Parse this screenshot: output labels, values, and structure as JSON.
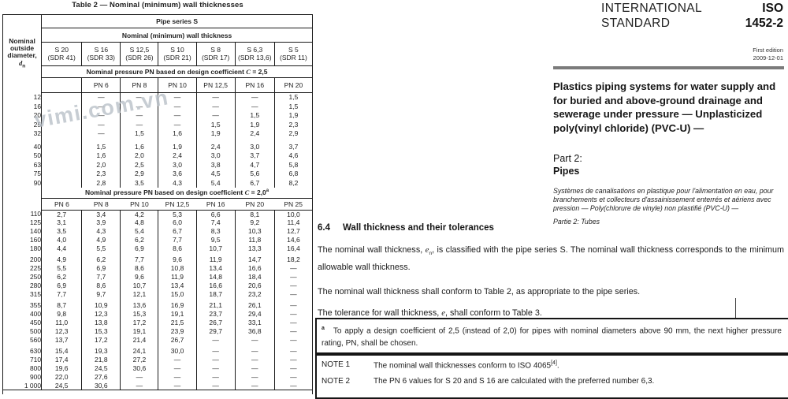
{
  "watermark": "vimi.com.vn",
  "table": {
    "title": "Table 2 — Nominal (minimum) wall thicknesses",
    "pipe_series_header": "Pipe series S",
    "wall_thickness_header": "Nominal (minimum) wall thickness",
    "stub_header_lines": [
      "Nominal",
      "outside",
      "diameter,"
    ],
    "stub_symbol": "d",
    "stub_symbol_sub": "n",
    "series_columns": [
      {
        "s": "S 20",
        "sdr": "(SDR 41)"
      },
      {
        "s": "S 16",
        "sdr": "(SDR 33)"
      },
      {
        "s": "S 12,5",
        "sdr": "(SDR 26)"
      },
      {
        "s": "S 10",
        "sdr": "(SDR 21)"
      },
      {
        "s": "S 8",
        "sdr": "(SDR 17)"
      },
      {
        "s": "S 6,3",
        "sdr": "(SDR 13,6)"
      },
      {
        "s": "S 5",
        "sdr": "(SDR 11)"
      }
    ],
    "block_c25": {
      "header_prefix": "Nominal pressure PN based on design coefficient ",
      "header_c": "C",
      "header_value": " = 2,5",
      "header_sup": "",
      "pn_labels": [
        "",
        "PN 6",
        "PN 8",
        "PN 10",
        "PN 12,5",
        "PN 16",
        "PN 20"
      ],
      "groups": [
        [
          [
            "12",
            "",
            "—",
            "—",
            "—",
            "—",
            "—",
            "1,5"
          ],
          [
            "16",
            "",
            "—",
            "—",
            "—",
            "—",
            "—",
            "1,5"
          ],
          [
            "20",
            "",
            "—",
            "—",
            "—",
            "—",
            "1,5",
            "1,9"
          ],
          [
            "25",
            "",
            "—",
            "—",
            "—",
            "1,5",
            "1,9",
            "2,3"
          ],
          [
            "32",
            "",
            "—",
            "1,5",
            "1,6",
            "1,9",
            "2,4",
            "2,9"
          ]
        ],
        [
          [
            "40",
            "",
            "1,5",
            "1,6",
            "1,9",
            "2,4",
            "3,0",
            "3,7"
          ],
          [
            "50",
            "",
            "1,6",
            "2,0",
            "2,4",
            "3,0",
            "3,7",
            "4,6"
          ],
          [
            "63",
            "",
            "2,0",
            "2,5",
            "3,0",
            "3,8",
            "4,7",
            "5,8"
          ],
          [
            "75",
            "",
            "2,3",
            "2,9",
            "3,6",
            "4,5",
            "5,6",
            "6,8"
          ],
          [
            "90",
            "",
            "2,8",
            "3,5",
            "4,3",
            "5,4",
            "6,7",
            "8,2"
          ]
        ]
      ]
    },
    "block_c20": {
      "header_prefix": "Nominal pressure PN based on design coefficient ",
      "header_c": "C",
      "header_value": " = 2,0",
      "header_sup": "a",
      "pn_labels": [
        "PN 6",
        "PN 8",
        "PN 10",
        "PN 12,5",
        "PN 16",
        "PN 20",
        "PN 25"
      ],
      "groups": [
        [
          [
            "110",
            "2,7",
            "3,4",
            "4,2",
            "5,3",
            "6,6",
            "8,1",
            "10,0"
          ],
          [
            "125",
            "3,1",
            "3,9",
            "4,8",
            "6,0",
            "7,4",
            "9,2",
            "11,4"
          ],
          [
            "140",
            "3,5",
            "4,3",
            "5,4",
            "6,7",
            "8,3",
            "10,3",
            "12,7"
          ],
          [
            "160",
            "4,0",
            "4,9",
            "6,2",
            "7,7",
            "9,5",
            "11,8",
            "14,6"
          ],
          [
            "180",
            "4,4",
            "5,5",
            "6,9",
            "8,6",
            "10,7",
            "13,3",
            "16,4"
          ]
        ],
        [
          [
            "200",
            "4,9",
            "6,2",
            "7,7",
            "9,6",
            "11,9",
            "14,7",
            "18,2"
          ],
          [
            "225",
            "5,5",
            "6,9",
            "8,6",
            "10,8",
            "13,4",
            "16,6",
            "—"
          ],
          [
            "250",
            "6,2",
            "7,7",
            "9,6",
            "11,9",
            "14,8",
            "18,4",
            "—"
          ],
          [
            "280",
            "6,9",
            "8,6",
            "10,7",
            "13,4",
            "16,6",
            "20,6",
            "—"
          ],
          [
            "315",
            "7,7",
            "9,7",
            "12,1",
            "15,0",
            "18,7",
            "23,2",
            "—"
          ]
        ],
        [
          [
            "355",
            "8,7",
            "10,9",
            "13,6",
            "16,9",
            "21,1",
            "26,1",
            "—"
          ],
          [
            "400",
            "9,8",
            "12,3",
            "15,3",
            "19,1",
            "23,7",
            "29,4",
            "—"
          ],
          [
            "450",
            "11,0",
            "13,8",
            "17,2",
            "21,5",
            "26,7",
            "33,1",
            "—"
          ],
          [
            "500",
            "12,3",
            "15,3",
            "19,1",
            "23,9",
            "29,7",
            "36,8",
            "—"
          ],
          [
            "560",
            "13,7",
            "17,2",
            "21,4",
            "26,7",
            "—",
            "—",
            "—"
          ]
        ],
        [
          [
            "630",
            "15,4",
            "19,3",
            "24,1",
            "30,0",
            "—",
            "—",
            "—"
          ],
          [
            "710",
            "17,4",
            "21,8",
            "27,2",
            "—",
            "—",
            "—",
            "—"
          ],
          [
            "800",
            "19,6",
            "24,5",
            "30,6",
            "—",
            "—",
            "—",
            "—"
          ],
          [
            "900",
            "22,0",
            "27,6",
            "—",
            "—",
            "—",
            "—",
            "—"
          ],
          [
            "1 000",
            "24,5",
            "30,6",
            "—",
            "—",
            "—",
            "—",
            "—"
          ]
        ]
      ]
    }
  },
  "cover": {
    "org_line1": "INTERNATIONAL",
    "org_line2": "STANDARD",
    "code": "ISO",
    "number": "1452-2",
    "edition_line1": "First edition",
    "edition_line2": "2009-12-01",
    "title_en": "Plastics piping systems for water supply and for buried and above-ground drainage and sewerage under pressure — Unplasticized poly(vinyl chloride) (PVC-U) —",
    "part_label": "Part 2:",
    "part_title": "Pipes",
    "title_fr": "Systèmes de canalisations en plastique pour l'alimentation en eau, pour branchements et collecteurs d'assainissement enterrés et aériens avec pression — Poly(chlorure de vinyle) non plastifié (PVC-U) —",
    "part_fr": "Partie 2: Tubes"
  },
  "section": {
    "number": "6.4",
    "heading": "Wall thickness and their tolerances",
    "p1_a": "The nominal wall thickness, ",
    "p1_sym": "e",
    "p1_sub": "n",
    "p1_b": ", is classified with the pipe series S. The nominal wall thickness corresponds to the minimum allowable wall thickness.",
    "p2": "The nominal wall thickness shall conform to Table 2, as appropriate to the pipe series.",
    "p3_a": "The tolerance for wall thickness, ",
    "p3_sym": "e",
    "p3_b": ", shall conform to Table 3."
  },
  "footnote": {
    "marker": "a",
    "text": "To apply a design coefficient of 2,5 (instead of 2,0) for pipes with nominal diameters above 90 mm, the next higher pressure rating, PN, shall be chosen."
  },
  "notes": {
    "note1_label": "NOTE 1",
    "note1_a": "The nominal wall thicknesses conform to ISO 4065",
    "note1_sup": "[4]",
    "note1_b": ".",
    "note2_label": "NOTE 2",
    "note2_text": "The PN 6 values for S 20 and S 16 are calculated with the preferred number 6,3."
  }
}
